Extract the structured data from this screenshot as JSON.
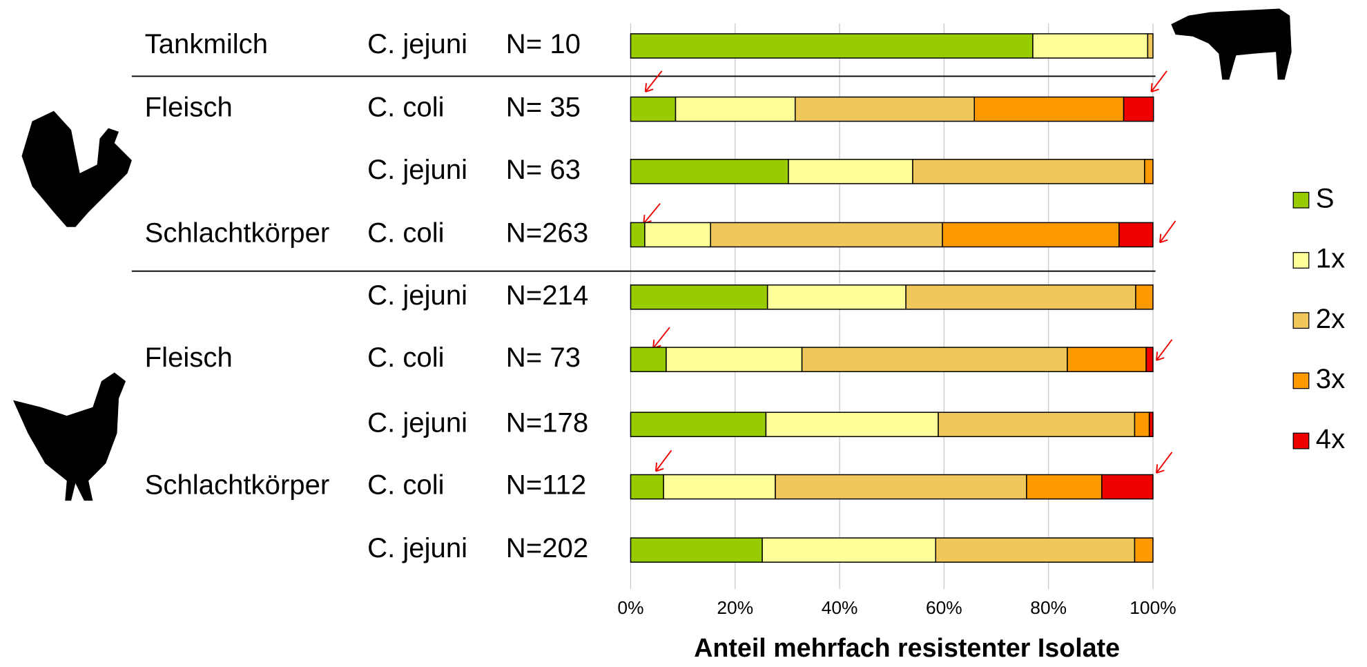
{
  "chart_data": {
    "type": "stacked-bar-horizontal",
    "x_label": "Anteil mehrfach resistenter Isolate",
    "group_labels": [
      "Tankmilch",
      "Fleisch",
      null,
      "Schlachtkörper",
      null,
      "Fleisch",
      null,
      "Schlachtkörper",
      null
    ],
    "categories": [
      "C. jejuni",
      "C. coli",
      "C. jejuni",
      "C. coli",
      "C. jejuni",
      "C. coli",
      "C. jejuni",
      "C. coli",
      "C. jejuni"
    ],
    "n_labels": [
      "N=  10",
      "N=  35",
      "N=  63",
      "N=263",
      "N=214",
      "N=  73",
      "N=178",
      "N=112",
      "N=202"
    ],
    "series": [
      {
        "name": "S",
        "color": "#99cc00",
        "values": [
          77,
          8.6,
          30.2,
          2.7,
          26.2,
          6.8,
          25.9,
          6.3,
          25.2
        ]
      },
      {
        "name": "1x",
        "color": "#ffff99",
        "values": [
          22,
          22.9,
          23.8,
          12.6,
          26.5,
          26.0,
          33.0,
          21.4,
          33.2
        ]
      },
      {
        "name": "2x",
        "color": "#f0c75a",
        "values": [
          1,
          34.3,
          44.4,
          44.4,
          44.0,
          50.8,
          37.6,
          48.1,
          38.1
        ]
      },
      {
        "name": "3x",
        "color": "#ff9900",
        "values": [
          0,
          28.6,
          1.6,
          33.8,
          3.3,
          15.1,
          2.8,
          14.4,
          3.5
        ]
      },
      {
        "name": "4x",
        "color": "#ee0000",
        "values": [
          0,
          5.7,
          0,
          6.5,
          0,
          1.3,
          0.7,
          9.8,
          0
        ]
      }
    ],
    "xlim": [
      0,
      100
    ],
    "xticks": [
      {
        "value": 0,
        "label": "0%"
      },
      {
        "value": 20,
        "label": "20%"
      },
      {
        "value": 40,
        "label": "40%"
      },
      {
        "value": 60,
        "label": "60%"
      },
      {
        "value": 80,
        "label": "80%"
      },
      {
        "value": 100,
        "label": "100%"
      }
    ],
    "grid": true
  }
}
